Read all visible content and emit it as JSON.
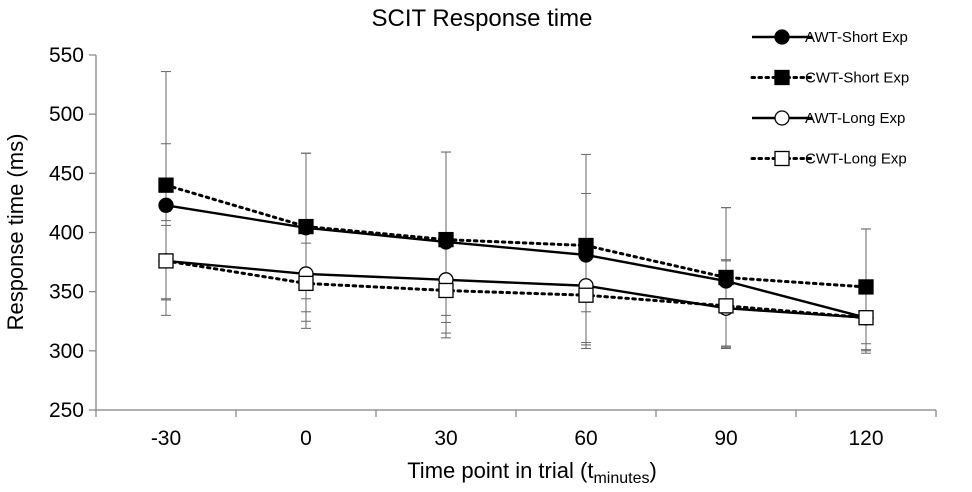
{
  "chart_data": {
    "type": "line",
    "title": "SCIT Response time",
    "xlabel": "Time point in trial (t",
    "xlabel_sub": "minutes",
    "xlabel_close": ")",
    "ylabel": "Response time (ms)",
    "ylim": [
      250,
      550
    ],
    "yticks": [
      250,
      300,
      350,
      400,
      450,
      500,
      550
    ],
    "categories": [
      "-30",
      "0",
      "30",
      "60",
      "90",
      "120"
    ],
    "legend_position": "top-right",
    "series": [
      {
        "name": "AWT-Short Exp",
        "marker": "circle",
        "filled": true,
        "dashed": false,
        "values": [
          423,
          404,
          392,
          381,
          359,
          328
        ],
        "err_upper": [
          113,
          63,
          76,
          52,
          62,
          75
        ],
        "err_lower": [
          80,
          60,
          62,
          48,
          55,
          27
        ]
      },
      {
        "name": "CWT-Short Exp",
        "marker": "square",
        "filled": true,
        "dashed": true,
        "values": [
          440,
          405,
          394,
          389,
          362,
          354
        ],
        "err_upper": [
          35,
          62,
          74,
          77,
          59,
          49
        ],
        "err_lower": [
          30,
          72,
          70,
          82,
          60,
          48
        ]
      },
      {
        "name": "AWT-Long Exp",
        "marker": "circle",
        "filled": false,
        "dashed": false,
        "values": [
          376,
          365,
          360,
          355,
          336,
          328
        ],
        "err_upper": [
          42,
          38,
          37,
          40,
          40,
          30
        ],
        "err_lower": [
          32,
          40,
          45,
          50,
          33,
          28
        ]
      },
      {
        "name": "CWT-Long Exp",
        "marker": "square",
        "filled": false,
        "dashed": true,
        "values": [
          376,
          357,
          351,
          347,
          338,
          328
        ],
        "err_upper": [
          30,
          34,
          37,
          36,
          39,
          28
        ],
        "err_lower": [
          46,
          38,
          40,
          45,
          34,
          30
        ]
      }
    ]
  }
}
